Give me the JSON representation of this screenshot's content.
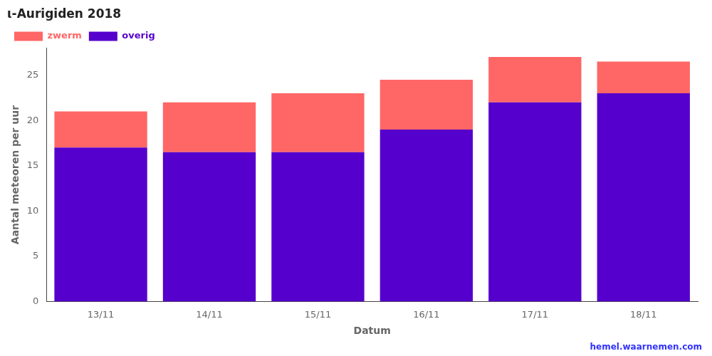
{
  "chart_data": {
    "type": "bar",
    "stacked": true,
    "title": "ι-Aurigiden 2018",
    "x_label": "Datum",
    "y_label": "Aantal meteoren per uur",
    "categories": [
      "13/11",
      "14/11",
      "15/11",
      "16/11",
      "17/11",
      "18/11"
    ],
    "series": [
      {
        "name": "overig",
        "color": "#5500cc",
        "values": [
          17.0,
          16.5,
          16.5,
          19.0,
          22.0,
          23.0
        ]
      },
      {
        "name": "zwerm",
        "color": "#ff6666",
        "values": [
          4.0,
          5.5,
          6.5,
          5.5,
          5.0,
          3.5
        ]
      }
    ],
    "ylim": [
      0,
      28
    ],
    "yticks": [
      0,
      5,
      10,
      15,
      20,
      25
    ],
    "grid": false,
    "legend": "upper left",
    "annotations": [
      {
        "text": "hemel.waarnemen.com",
        "color": "#3333ff"
      }
    ]
  }
}
